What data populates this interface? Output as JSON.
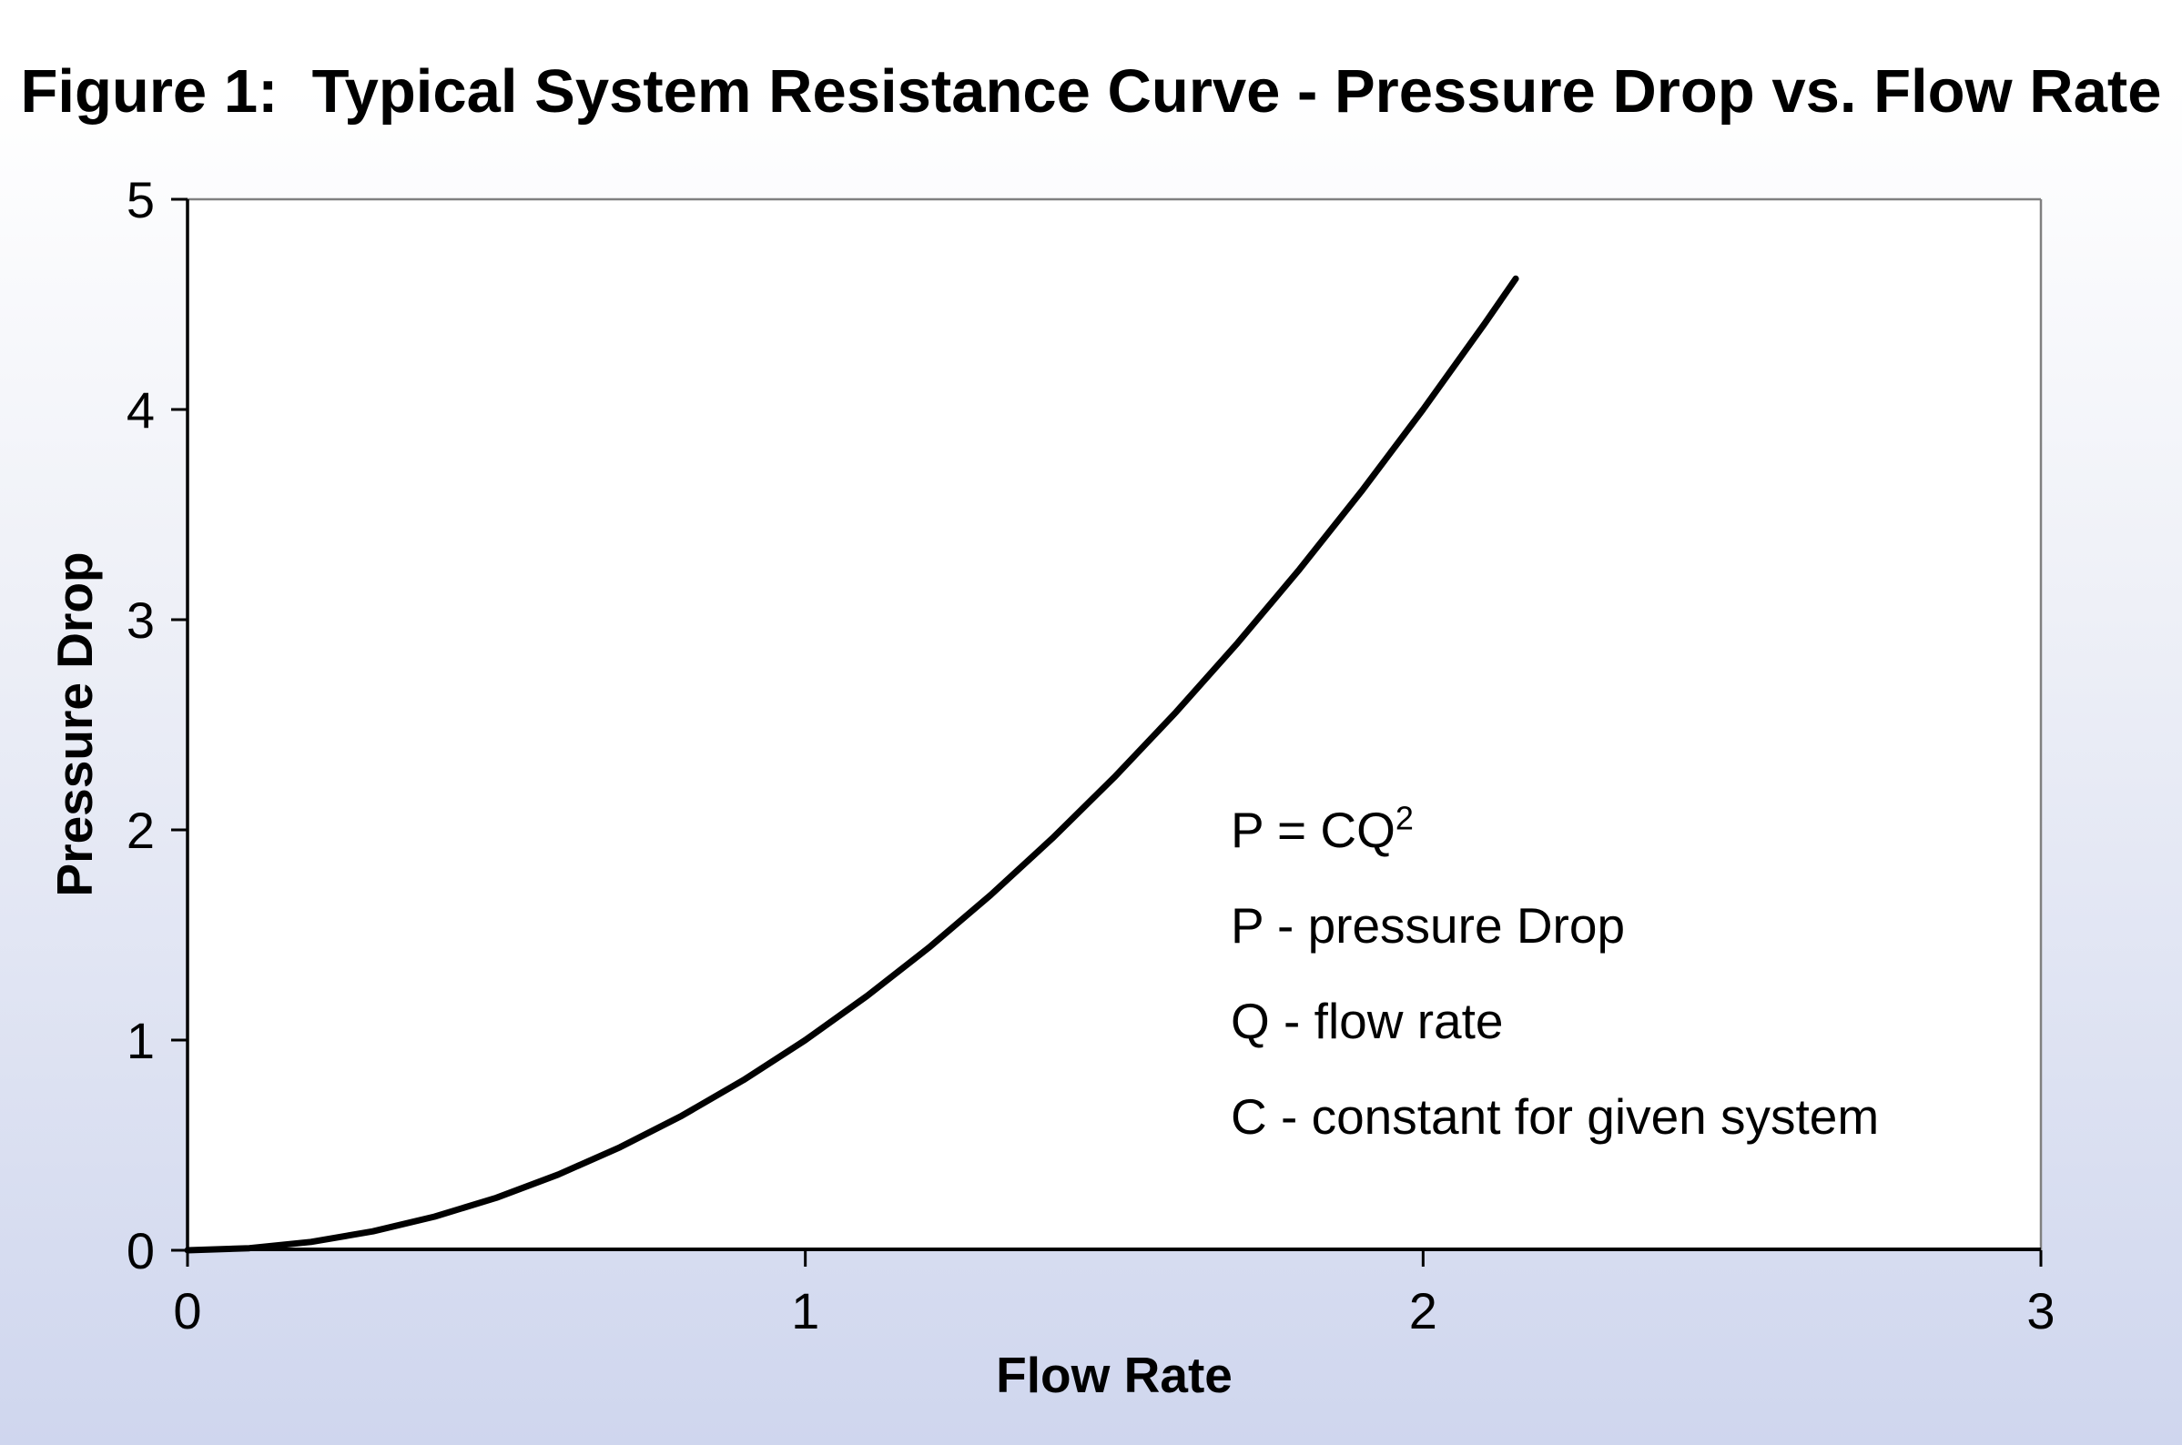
{
  "title": "Figure 1:  Typical System Resistance Curve - Pressure Drop vs. Flow Rate",
  "annotation": {
    "eq_base": "P = CQ",
    "eq_sup": "2",
    "lines": [
      "P - pressure Drop",
      "Q - flow rate",
      "C - constant for given system"
    ]
  },
  "chart_data": {
    "type": "line",
    "title": "Figure 1:  Typical System Resistance Curve - Pressure Drop vs. Flow Rate",
    "xlabel": "Flow Rate",
    "ylabel": "Pressure Drop",
    "xlim": [
      0,
      3
    ],
    "ylim": [
      0,
      5
    ],
    "x_ticks": [
      0,
      1,
      2,
      3
    ],
    "y_ticks": [
      0,
      1,
      2,
      3,
      4,
      5
    ],
    "grid": false,
    "legend_position": "none",
    "equation": "P = CQ^2 (C = 1 as drawn)",
    "annotation_text": [
      "P = CQ^2",
      "P - pressure Drop",
      "Q - flow rate",
      "C - constant for given system"
    ],
    "series": [
      {
        "name": "System resistance curve",
        "x": [
          0,
          0.1,
          0.2,
          0.3,
          0.4,
          0.5,
          0.6,
          0.7,
          0.8,
          0.9,
          1.0,
          1.1,
          1.2,
          1.3,
          1.4,
          1.5,
          1.6,
          1.7,
          1.8,
          1.9,
          2.0,
          2.1,
          2.15
        ],
        "y": [
          0,
          0.01,
          0.04,
          0.09,
          0.16,
          0.25,
          0.36,
          0.49,
          0.64,
          0.81,
          1.0,
          1.21,
          1.44,
          1.69,
          1.96,
          2.25,
          2.56,
          2.89,
          3.24,
          3.61,
          4.0,
          4.41,
          4.6225
        ]
      }
    ],
    "colors": {
      "line": "#000000",
      "plot_background": "#ffffff",
      "plot_border": "#808080",
      "axis": "#000000",
      "page_background_top": "#ffffff",
      "page_background_bottom": "#cfd6ee",
      "text": "#000000"
    }
  }
}
